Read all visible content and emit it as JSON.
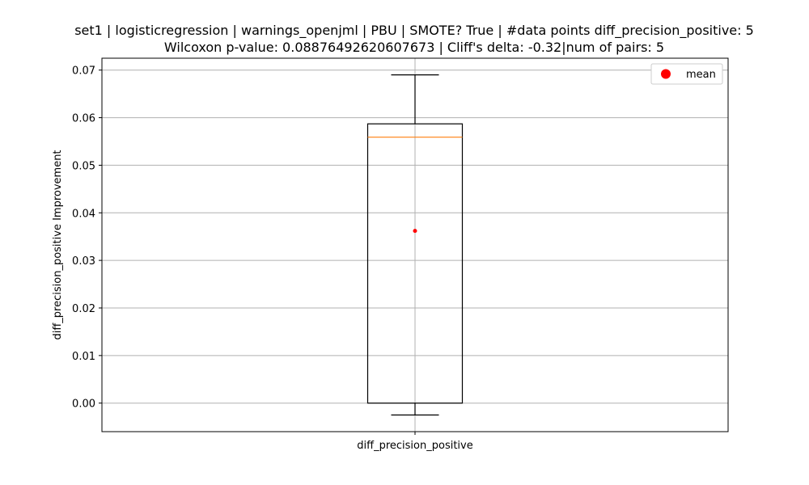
{
  "chart_data": {
    "type": "box",
    "title": "set1 | logisticregression | warnings_openjml | PBU | SMOTE? True | #data points diff_precision_positive: 5",
    "subtitle": "Wilcoxon p-value: 0.08876492620607673 | Cliff's delta: -0.32|num of pairs: 5",
    "xlabel": "",
    "ylabel": "diff_precision_positive Improvement",
    "categories": [
      "diff_precision_positive"
    ],
    "ylim": [
      -0.006,
      0.0725
    ],
    "yticks": [
      0.0,
      0.01,
      0.02,
      0.03,
      0.04,
      0.05,
      0.06,
      0.07
    ],
    "ytick_labels": [
      "0.00",
      "0.01",
      "0.02",
      "0.03",
      "0.04",
      "0.05",
      "0.06",
      "0.07"
    ],
    "grid": true,
    "legend_position": "top-right",
    "series": [
      {
        "whisker_low": -0.0025,
        "q1": 0.0,
        "median": 0.0559,
        "q3": 0.0587,
        "whisker_high": 0.069,
        "mean": 0.0362
      }
    ],
    "legend": [
      {
        "label": "mean",
        "marker": "circle",
        "color": "#ff0000"
      }
    ],
    "colors": {
      "box": "#000000",
      "median": "#ff7f0e",
      "mean": "#ff0000",
      "grid": "#b0b0b0"
    }
  }
}
